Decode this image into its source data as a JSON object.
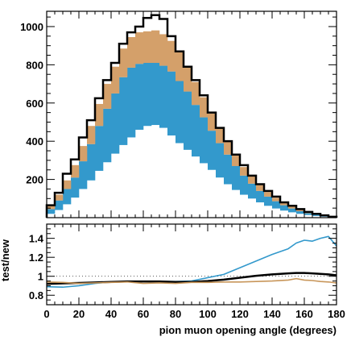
{
  "chart_data": [
    {
      "type": "bar",
      "panel": "top",
      "stacked": true,
      "x_bin_edges": [
        0,
        5,
        10,
        15,
        20,
        25,
        30,
        35,
        40,
        45,
        50,
        55,
        60,
        65,
        70,
        75,
        80,
        85,
        90,
        95,
        100,
        105,
        110,
        115,
        120,
        125,
        130,
        135,
        140,
        145,
        150,
        155,
        160,
        165,
        170,
        175,
        180
      ],
      "series": [
        {
          "color": "#ffffff",
          "values": [
            20,
            40,
            70,
            105,
            150,
            195,
            245,
            290,
            335,
            380,
            420,
            460,
            480,
            485,
            470,
            430,
            390,
            355,
            320,
            285,
            250,
            210,
            175,
            145,
            120,
            100,
            80,
            62,
            48,
            37,
            28,
            20,
            14,
            9,
            5,
            3
          ]
        },
        {
          "color": "#3399cc",
          "values": [
            25,
            50,
            80,
            105,
            145,
            190,
            235,
            280,
            315,
            355,
            365,
            345,
            330,
            325,
            325,
            335,
            325,
            305,
            270,
            240,
            205,
            180,
            155,
            125,
            100,
            78,
            60,
            48,
            38,
            28,
            20,
            14,
            9,
            6,
            3,
            2
          ]
        },
        {
          "color": "#d4a06a",
          "values": [
            20,
            30,
            45,
            65,
            80,
            95,
            115,
            130,
            140,
            150,
            160,
            165,
            165,
            170,
            165,
            160,
            150,
            135,
            120,
            105,
            90,
            80,
            68,
            55,
            45,
            38,
            30,
            24,
            18,
            14,
            10,
            7,
            5,
            3,
            2,
            1
          ]
        }
      ],
      "outline": {
        "color": "#000000",
        "values": [
          65,
          130,
          230,
          305,
          420,
          510,
          625,
          720,
          810,
          910,
          970,
          1000,
          1045,
          1060,
          1040,
          950,
          870,
          790,
          720,
          640,
          550,
          470,
          400,
          330,
          275,
          220,
          175,
          140,
          110,
          80,
          62,
          45,
          30,
          20,
          12,
          5
        ]
      },
      "xlim": [
        0,
        180
      ],
      "ylim": [
        0,
        1080
      ],
      "yticks": [
        200,
        400,
        600,
        800,
        1000
      ],
      "xlabel": "",
      "ylabel": ""
    },
    {
      "type": "line",
      "panel": "bottom",
      "x": [
        0,
        10,
        20,
        30,
        40,
        50,
        60,
        70,
        80,
        90,
        100,
        110,
        120,
        130,
        140,
        150,
        155,
        160,
        165,
        170,
        175,
        180
      ],
      "series": [
        {
          "color": "#3399cc",
          "values": [
            0.89,
            0.885,
            0.9,
            0.925,
            0.94,
            0.945,
            0.945,
            0.945,
            0.945,
            0.95,
            0.985,
            1.02,
            1.09,
            1.16,
            1.23,
            1.29,
            1.35,
            1.38,
            1.37,
            1.4,
            1.42,
            1.32
          ]
        },
        {
          "color": "#000000",
          "values": [
            0.92,
            0.925,
            0.93,
            0.935,
            0.94,
            0.945,
            0.945,
            0.945,
            0.94,
            0.94,
            0.95,
            0.965,
            0.985,
            1.005,
            1.02,
            1.03,
            1.035,
            1.035,
            1.03,
            1.025,
            1.02,
            1.01
          ]
        },
        {
          "color": "#c8965a",
          "values": [
            0.94,
            0.935,
            0.925,
            0.93,
            0.935,
            0.94,
            0.925,
            0.93,
            0.925,
            0.935,
            0.935,
            0.94,
            0.94,
            0.945,
            0.95,
            0.96,
            0.975,
            0.96,
            0.955,
            0.945,
            0.94,
            0.93
          ]
        }
      ],
      "xlim": [
        0,
        180
      ],
      "ylim": [
        0.7,
        1.55
      ],
      "xticks": [
        0,
        20,
        40,
        60,
        80,
        100,
        120,
        140,
        160,
        180
      ],
      "yticks": [
        0.8,
        1,
        1.2,
        1.4
      ],
      "ytick_labels": [
        "0.8",
        "1",
        "1.2",
        "1.4"
      ],
      "reference_line": 1,
      "xlabel": "pion muon opening angle (degrees)",
      "ylabel": "test/new"
    }
  ]
}
